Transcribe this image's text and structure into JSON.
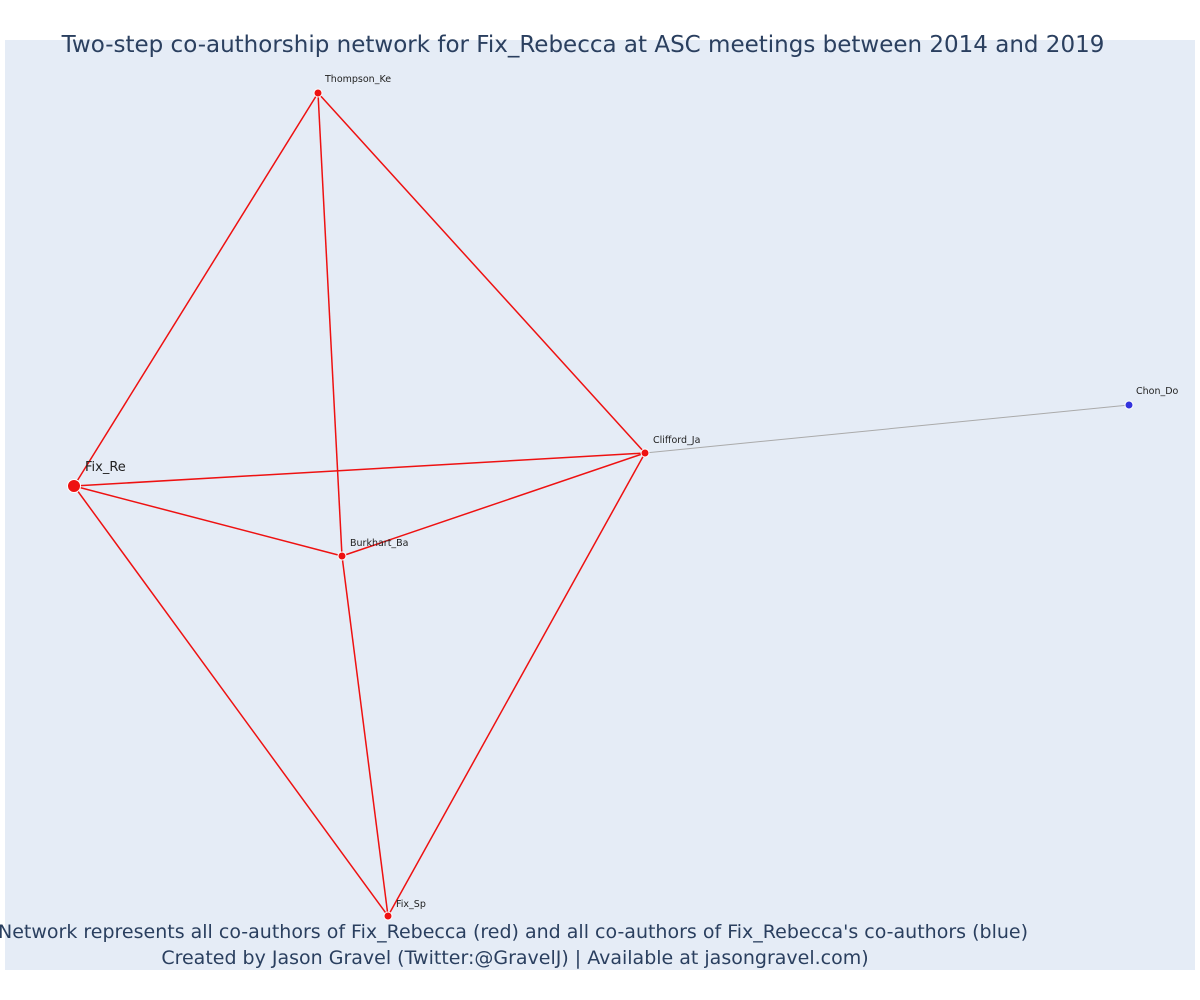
{
  "title": "Two-step co-authorship network for Fix_Rebecca at ASC meetings between 2014 and 2019",
  "caption": {
    "line1": "Network represents all co-authors of Fix_Rebecca (red) and all co-authors of Fix_Rebecca's co-authors (blue)",
    "line2": "Created by Jason Gravel (Twitter:@GravelJ) | Available at jasongravel.com)"
  },
  "colors": {
    "background": "#e5ecf6",
    "first_degree": "#ee1111",
    "second_degree": "#3333dd",
    "first_degree_edge": "#ee1111",
    "second_degree_edge": "#aaaaaa",
    "text": "#2a3f5f"
  },
  "nodes": [
    {
      "id": "Fix_Re",
      "label": "Fix_Re",
      "group": "focal"
    },
    {
      "id": "Thompson_Ke",
      "label": "Thompson_Ke",
      "group": "first"
    },
    {
      "id": "Clifford_Ja",
      "label": "Clifford_Ja",
      "group": "first"
    },
    {
      "id": "Burkhart_Ba",
      "label": "Burkhart_Ba",
      "group": "first"
    },
    {
      "id": "Fix_Sp",
      "label": "Fix_Sp",
      "group": "first"
    },
    {
      "id": "Chon_Do",
      "label": "Chon_Do",
      "group": "second"
    }
  ],
  "edges": [
    {
      "source": "Fix_Re",
      "target": "Thompson_Ke",
      "group": "first"
    },
    {
      "source": "Fix_Re",
      "target": "Clifford_Ja",
      "group": "first"
    },
    {
      "source": "Fix_Re",
      "target": "Burkhart_Ba",
      "group": "first"
    },
    {
      "source": "Fix_Re",
      "target": "Fix_Sp",
      "group": "first"
    },
    {
      "source": "Thompson_Ke",
      "target": "Burkhart_Ba",
      "group": "first"
    },
    {
      "source": "Thompson_Ke",
      "target": "Clifford_Ja",
      "group": "first"
    },
    {
      "source": "Burkhart_Ba",
      "target": "Clifford_Ja",
      "group": "first"
    },
    {
      "source": "Burkhart_Ba",
      "target": "Fix_Sp",
      "group": "first"
    },
    {
      "source": "Clifford_Ja",
      "target": "Fix_Sp",
      "group": "first"
    },
    {
      "source": "Clifford_Ja",
      "target": "Chon_Do",
      "group": "second"
    }
  ]
}
